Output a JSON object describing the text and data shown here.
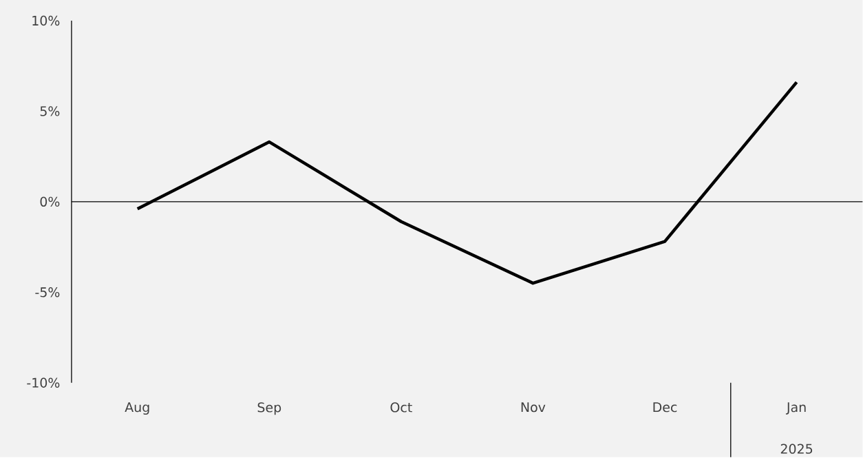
{
  "chart_data": {
    "type": "line",
    "categories": [
      "Aug",
      "Sep",
      "Oct",
      "Nov",
      "Dec",
      "Jan"
    ],
    "values": [
      -0.4,
      3.3,
      -1.1,
      -4.5,
      -2.2,
      6.6
    ],
    "color": "#000000",
    "line_style": "solid",
    "ylim": [
      -10,
      10
    ],
    "yticks": [
      {
        "value": -10,
        "label": "-10%"
      },
      {
        "value": -5,
        "label": "-5%"
      },
      {
        "value": 0,
        "label": "0%"
      },
      {
        "value": 5,
        "label": "5%"
      },
      {
        "value": 10,
        "label": "10%"
      }
    ],
    "annotations": [
      "2025"
    ]
  }
}
